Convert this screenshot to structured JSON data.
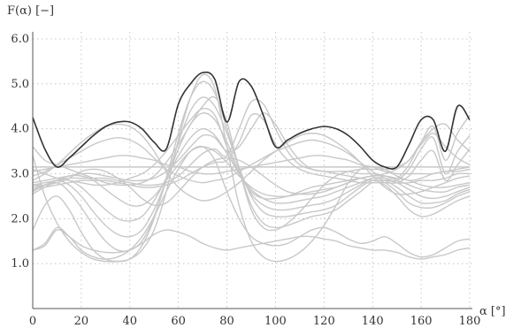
{
  "chart_data": {
    "type": "line",
    "ylabel": "F(α) [−]",
    "xlabel": "α [°]",
    "xlim": [
      0,
      180
    ],
    "ylim": [
      0,
      6.0
    ],
    "x_ticks": [
      "0",
      "20",
      "40",
      "60",
      "80",
      "100",
      "120",
      "140",
      "160",
      "180"
    ],
    "y_ticks": [
      "1.0",
      "2.0",
      "3.0",
      "4.0",
      "5.0",
      "6.0"
    ],
    "grid": true,
    "colors": {
      "family": "#c8c8c8",
      "envelope": "#333333",
      "axis": "#555555"
    },
    "x": [
      0,
      5,
      10,
      15,
      20,
      25,
      30,
      35,
      40,
      45,
      50,
      55,
      60,
      65,
      70,
      75,
      80,
      85,
      90,
      95,
      100,
      105,
      110,
      115,
      120,
      125,
      130,
      135,
      140,
      145,
      150,
      155,
      160,
      165,
      170,
      175,
      180
    ],
    "series": [
      {
        "role": "envelope",
        "values": [
          4.25,
          3.55,
          3.15,
          3.35,
          3.6,
          3.85,
          4.05,
          4.15,
          4.15,
          4.0,
          3.7,
          3.55,
          4.55,
          5.0,
          5.25,
          5.1,
          4.15,
          5.05,
          4.95,
          4.3,
          3.6,
          3.75,
          3.9,
          4.0,
          4.05,
          4.0,
          3.85,
          3.6,
          3.3,
          3.15,
          3.15,
          3.65,
          4.2,
          4.2,
          3.5,
          4.5,
          4.2
        ]
      },
      {
        "role": "family",
        "values": [
          3.15,
          3.15,
          3.15,
          3.15,
          3.15,
          3.15,
          3.15,
          3.15,
          3.15,
          3.15,
          3.15,
          3.15,
          3.15,
          3.15,
          3.15,
          3.15,
          3.15,
          3.15,
          3.15,
          3.15,
          3.15,
          3.15,
          3.15,
          3.15,
          3.15,
          3.15,
          3.15,
          3.15,
          3.15,
          3.15,
          3.15,
          3.15,
          3.15,
          3.15,
          3.15,
          3.15,
          3.15
        ]
      },
      {
        "role": "family",
        "values": [
          3.05,
          3.1,
          3.15,
          3.2,
          3.25,
          3.3,
          3.35,
          3.4,
          3.4,
          3.35,
          3.3,
          3.2,
          3.15,
          3.05,
          3.0,
          3.0,
          3.05,
          3.1,
          3.15,
          3.2,
          3.25,
          3.3,
          3.35,
          3.4,
          3.4,
          3.35,
          3.3,
          3.2,
          3.15,
          3.05,
          3.0,
          3.0,
          3.0,
          3.0,
          3.05,
          3.05,
          3.1
        ]
      },
      {
        "role": "family",
        "values": [
          2.95,
          3.05,
          3.2,
          3.35,
          3.5,
          3.65,
          3.75,
          3.8,
          3.75,
          3.6,
          3.35,
          3.1,
          2.95,
          2.85,
          2.8,
          2.85,
          2.9,
          3.05,
          3.2,
          3.35,
          3.5,
          3.6,
          3.7,
          3.75,
          3.7,
          3.6,
          3.45,
          3.25,
          3.05,
          2.9,
          2.8,
          2.8,
          2.85,
          2.85,
          2.9,
          3.0,
          3.0
        ]
      },
      {
        "role": "family",
        "values": [
          2.85,
          3.0,
          3.2,
          3.45,
          3.7,
          3.9,
          4.05,
          4.1,
          4.05,
          3.85,
          3.5,
          3.05,
          2.7,
          2.5,
          2.4,
          2.45,
          2.6,
          2.8,
          3.05,
          3.3,
          3.5,
          3.7,
          3.85,
          3.9,
          3.85,
          3.7,
          3.5,
          3.25,
          2.95,
          2.7,
          2.55,
          2.55,
          2.6,
          2.7,
          2.8,
          2.9,
          2.95
        ]
      },
      {
        "role": "family",
        "values": [
          2.75,
          2.75,
          2.8,
          2.9,
          3.05,
          3.1,
          3.05,
          2.9,
          2.7,
          2.45,
          2.3,
          2.35,
          2.6,
          2.9,
          3.15,
          3.3,
          3.35,
          3.3,
          3.15,
          2.95,
          2.75,
          2.6,
          2.55,
          2.55,
          2.6,
          2.7,
          2.8,
          2.9,
          2.95,
          2.95,
          2.9,
          2.85,
          2.75,
          2.7,
          2.7,
          2.75,
          2.8
        ]
      },
      {
        "role": "family",
        "values": [
          2.7,
          2.75,
          2.85,
          2.95,
          2.95,
          2.85,
          2.65,
          2.45,
          2.3,
          2.3,
          2.5,
          2.85,
          3.2,
          3.5,
          3.6,
          3.5,
          3.25,
          2.95,
          2.7,
          2.55,
          2.5,
          2.5,
          2.55,
          2.6,
          2.65,
          2.7,
          2.8,
          2.9,
          2.95,
          2.95,
          2.85,
          2.75,
          2.65,
          2.6,
          2.6,
          2.7,
          2.75
        ]
      },
      {
        "role": "family",
        "values": [
          2.65,
          2.75,
          2.85,
          2.85,
          2.7,
          2.45,
          2.2,
          2.0,
          1.95,
          2.05,
          2.4,
          2.9,
          3.4,
          3.8,
          4.0,
          3.85,
          3.45,
          3.0,
          2.65,
          2.45,
          2.35,
          2.35,
          2.4,
          2.45,
          2.5,
          2.6,
          2.7,
          2.8,
          2.9,
          2.9,
          2.8,
          2.65,
          2.5,
          2.45,
          2.5,
          2.6,
          2.7
        ]
      },
      {
        "role": "family",
        "values": [
          2.6,
          2.75,
          2.85,
          2.75,
          2.5,
          2.15,
          1.85,
          1.65,
          1.6,
          1.75,
          2.2,
          2.85,
          3.55,
          4.1,
          4.35,
          4.2,
          3.7,
          3.05,
          2.55,
          2.3,
          2.2,
          2.2,
          2.25,
          2.3,
          2.35,
          2.45,
          2.6,
          2.75,
          2.9,
          2.85,
          2.7,
          2.5,
          2.35,
          2.35,
          2.4,
          2.55,
          2.65
        ]
      },
      {
        "role": "family",
        "values": [
          2.55,
          2.7,
          2.8,
          2.6,
          2.25,
          1.85,
          1.5,
          1.3,
          1.3,
          1.5,
          2.05,
          2.85,
          3.7,
          4.4,
          4.7,
          4.5,
          3.9,
          3.15,
          2.5,
          2.15,
          2.05,
          2.05,
          2.1,
          2.15,
          2.2,
          2.3,
          2.5,
          2.7,
          2.85,
          2.8,
          2.6,
          2.35,
          2.25,
          2.25,
          2.35,
          2.5,
          2.6
        ]
      },
      {
        "role": "family",
        "values": [
          1.75,
          2.3,
          2.5,
          2.2,
          1.7,
          1.3,
          1.1,
          1.05,
          1.1,
          1.4,
          2.0,
          2.9,
          3.9,
          4.7,
          5.05,
          4.8,
          4.0,
          3.1,
          2.3,
          1.9,
          1.8,
          1.85,
          1.95,
          2.05,
          2.1,
          2.2,
          2.4,
          2.6,
          2.8,
          2.75,
          2.5,
          2.2,
          2.05,
          2.1,
          2.25,
          2.4,
          2.5
        ]
      },
      {
        "role": "family",
        "values": [
          1.3,
          1.45,
          1.8,
          1.6,
          1.3,
          1.15,
          1.1,
          1.15,
          1.3,
          1.6,
          2.05,
          2.6,
          3.1,
          3.5,
          3.6,
          3.3,
          2.6,
          2.0,
          1.6,
          1.45,
          1.4,
          1.45,
          1.6,
          1.75,
          1.8,
          1.7,
          1.55,
          1.45,
          1.5,
          1.6,
          1.45,
          1.25,
          1.15,
          1.2,
          1.35,
          1.5,
          1.55
        ]
      },
      {
        "role": "family",
        "values": [
          1.3,
          1.4,
          1.75,
          1.6,
          1.4,
          1.3,
          1.25,
          1.25,
          1.3,
          1.45,
          1.65,
          1.75,
          1.7,
          1.6,
          1.45,
          1.35,
          1.3,
          1.35,
          1.4,
          1.45,
          1.5,
          1.55,
          1.6,
          1.6,
          1.55,
          1.5,
          1.4,
          1.35,
          1.3,
          1.3,
          1.25,
          1.15,
          1.1,
          1.15,
          1.2,
          1.3,
          1.35
        ]
      },
      {
        "role": "family",
        "values": [
          3.4,
          2.5,
          1.9,
          1.5,
          1.25,
          1.1,
          1.05,
          1.05,
          1.1,
          1.3,
          1.75,
          2.6,
          3.75,
          4.7,
          5.2,
          4.9,
          3.6,
          2.3,
          1.5,
          1.15,
          1.05,
          1.1,
          1.25,
          1.5,
          1.85,
          2.3,
          2.8,
          3.1,
          3.15,
          3.1,
          2.95,
          2.85,
          2.9,
          3.0,
          3.05,
          3.1,
          3.15
        ]
      },
      {
        "role": "family",
        "values": [
          3.6,
          3.3,
          3.2,
          3.1,
          3.0,
          2.9,
          2.8,
          2.75,
          2.75,
          2.8,
          2.95,
          3.25,
          3.65,
          4.1,
          4.5,
          4.7,
          4.15,
          3.1,
          2.2,
          1.8,
          1.75,
          1.9,
          2.15,
          2.45,
          2.75,
          2.95,
          3.05,
          3.1,
          3.1,
          3.1,
          3.15,
          3.3,
          3.7,
          4.0,
          4.1,
          3.75,
          3.5
        ]
      },
      {
        "role": "family",
        "values": [
          3.1,
          3.0,
          2.9,
          2.85,
          2.8,
          2.75,
          2.75,
          2.8,
          2.9,
          3.0,
          3.2,
          3.5,
          3.85,
          4.2,
          4.45,
          4.3,
          3.6,
          3.0,
          2.6,
          2.45,
          2.45,
          2.5,
          2.6,
          2.7,
          2.75,
          2.8,
          2.85,
          2.9,
          2.95,
          3.0,
          3.1,
          3.3,
          3.65,
          3.9,
          3.6,
          3.35,
          3.2
        ]
      },
      {
        "role": "family",
        "values": [
          2.8,
          2.85,
          2.9,
          2.95,
          3.0,
          3.0,
          2.95,
          2.9,
          2.85,
          2.85,
          2.9,
          3.05,
          3.3,
          3.6,
          3.85,
          3.8,
          3.5,
          3.6,
          4.0,
          4.35,
          4.1,
          3.65,
          3.3,
          3.1,
          3.05,
          3.05,
          3.05,
          3.0,
          3.0,
          2.95,
          2.9,
          3.2,
          3.7,
          4.05,
          3.3,
          3.9,
          4.3
        ]
      },
      {
        "role": "family",
        "values": [
          2.75,
          2.8,
          2.85,
          2.9,
          2.9,
          2.9,
          2.9,
          2.85,
          2.8,
          2.75,
          2.75,
          2.8,
          2.95,
          3.2,
          3.45,
          3.55,
          3.4,
          4.0,
          4.6,
          4.55,
          4.0,
          3.5,
          3.2,
          3.1,
          3.05,
          3.0,
          2.95,
          2.9,
          2.85,
          2.85,
          2.85,
          3.1,
          3.55,
          3.8,
          3.0,
          3.5,
          3.85
        ]
      },
      {
        "role": "family",
        "values": [
          2.65,
          2.7,
          2.75,
          2.8,
          2.85,
          2.85,
          2.85,
          2.8,
          2.75,
          2.7,
          2.7,
          2.75,
          2.85,
          3.0,
          3.15,
          3.25,
          3.3,
          3.7,
          4.3,
          4.2,
          3.65,
          3.3,
          3.1,
          3.0,
          2.95,
          2.9,
          2.85,
          2.8,
          2.8,
          2.8,
          2.8,
          2.95,
          3.3,
          3.5,
          2.85,
          3.2,
          3.55
        ]
      }
    ]
  }
}
